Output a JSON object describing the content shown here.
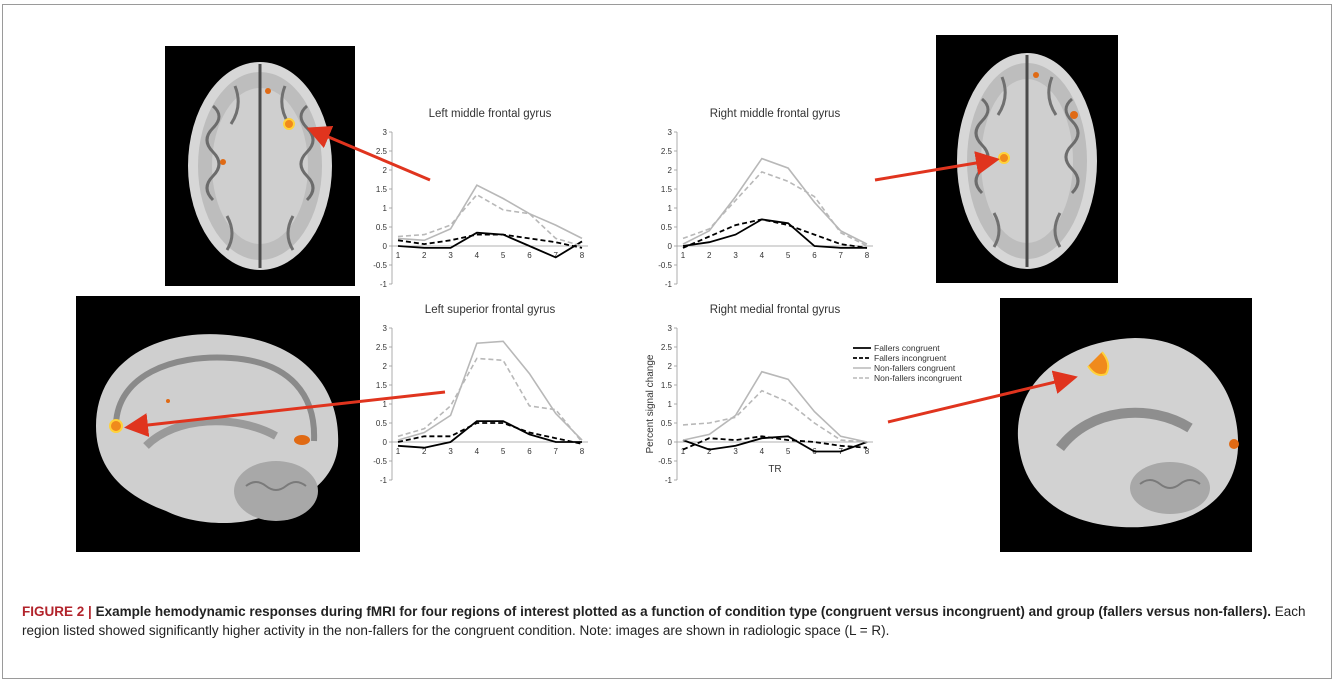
{
  "figure": {
    "label": "FIGURE 2 |",
    "title": "Example hemodynamic responses during fMRI for four regions of interest plotted as a function of condition type (congruent versus incongruent) and group (fallers versus non-fallers).",
    "body": "Each region listed showed significantly higher activity in the non-fallers for the congruent condition. Note: images are shown in radiologic space (L = R)."
  },
  "colors": {
    "arrow": "#e0341e",
    "fallers": "#000000",
    "nonfallers": "#b8b8b8",
    "activation": "#f08a1c"
  },
  "brains": [
    {
      "name": "axial-left",
      "label": "axial brain slice, left middle frontal activation"
    },
    {
      "name": "axial-right",
      "label": "axial brain slice, right middle frontal activation"
    },
    {
      "name": "sagittal-left",
      "label": "sagittal brain slice, left superior frontal activation"
    },
    {
      "name": "sagittal-right",
      "label": "sagittal brain slice, right medial frontal activation"
    }
  ],
  "chart_data": [
    {
      "type": "line",
      "title": "Left middle frontal gyrus",
      "x": [
        1,
        2,
        3,
        4,
        5,
        6,
        7,
        8
      ],
      "ylim": [
        -1,
        3
      ],
      "yticks": [
        "3",
        "2.5",
        "2",
        "1.5",
        "1",
        "0.5",
        "0",
        "-0.5",
        "-1"
      ],
      "xticks": [
        "1",
        "2",
        "3",
        "4",
        "5",
        "6",
        "7",
        "8"
      ],
      "ylabel": "",
      "xlabel": "",
      "series": [
        {
          "name": "Fallers congruent",
          "values": [
            0.0,
            -0.05,
            -0.05,
            0.35,
            0.3,
            0.0,
            -0.3,
            0.12
          ]
        },
        {
          "name": "Fallers incongruent",
          "values": [
            0.15,
            0.05,
            0.15,
            0.3,
            0.3,
            0.2,
            0.1,
            -0.05
          ]
        },
        {
          "name": "Non-fallers congruent",
          "values": [
            0.2,
            0.15,
            0.45,
            1.6,
            1.25,
            0.85,
            0.55,
            0.2
          ]
        },
        {
          "name": "Non-fallers incongruent",
          "values": [
            0.25,
            0.3,
            0.55,
            1.35,
            0.95,
            0.85,
            0.2,
            0.0
          ]
        }
      ],
      "legend": false
    },
    {
      "type": "line",
      "title": "Right middle frontal gyrus",
      "x": [
        1,
        2,
        3,
        4,
        5,
        6,
        7,
        8
      ],
      "ylim": [
        -1,
        3
      ],
      "yticks": [
        "3",
        "2.5",
        "2",
        "1.5",
        "1",
        "0.5",
        "0",
        "-0.5",
        "-1"
      ],
      "xticks": [
        "1",
        "2",
        "3",
        "4",
        "5",
        "6",
        "7",
        "8"
      ],
      "ylabel": "",
      "xlabel": "",
      "series": [
        {
          "name": "Fallers congruent",
          "values": [
            0.0,
            0.1,
            0.3,
            0.7,
            0.6,
            0.0,
            -0.05,
            -0.05
          ]
        },
        {
          "name": "Fallers incongruent",
          "values": [
            -0.05,
            0.25,
            0.55,
            0.7,
            0.55,
            0.3,
            0.05,
            -0.05
          ]
        },
        {
          "name": "Non-fallers congruent",
          "values": [
            0.05,
            0.4,
            1.3,
            2.3,
            2.05,
            1.15,
            0.4,
            0.05
          ]
        },
        {
          "name": "Non-fallers incongruent",
          "values": [
            0.2,
            0.45,
            1.2,
            1.95,
            1.7,
            1.3,
            0.35,
            0.0
          ]
        }
      ],
      "legend": false
    },
    {
      "type": "line",
      "title": "Left superior frontal gyrus",
      "x": [
        1,
        2,
        3,
        4,
        5,
        6,
        7,
        8
      ],
      "ylim": [
        -1,
        3
      ],
      "yticks": [
        "3",
        "2.5",
        "2",
        "1.5",
        "1",
        "0.5",
        "0",
        "-0.5",
        "-1"
      ],
      "xticks": [
        "1",
        "2",
        "3",
        "4",
        "5",
        "6",
        "7",
        "8"
      ],
      "ylabel": "",
      "xlabel": "",
      "series": [
        {
          "name": "Fallers congruent",
          "values": [
            -0.1,
            -0.15,
            0.0,
            0.55,
            0.55,
            0.2,
            0.0,
            0.0
          ]
        },
        {
          "name": "Fallers incongruent",
          "values": [
            0.0,
            0.15,
            0.15,
            0.5,
            0.5,
            0.25,
            0.1,
            -0.05
          ]
        },
        {
          "name": "Non-fallers congruent",
          "values": [
            0.05,
            0.25,
            0.7,
            2.6,
            2.65,
            1.8,
            0.75,
            0.05
          ]
        },
        {
          "name": "Non-fallers incongruent",
          "values": [
            0.15,
            0.35,
            0.95,
            2.2,
            2.15,
            0.95,
            0.85,
            0.0
          ]
        }
      ],
      "legend": false
    },
    {
      "type": "line",
      "title": "Right medial frontal gyrus",
      "x": [
        1,
        2,
        3,
        4,
        5,
        6,
        7,
        8
      ],
      "ylim": [
        -1,
        3
      ],
      "yticks": [
        "3",
        "2.5",
        "2",
        "1.5",
        "1",
        "0.5",
        "0",
        "-0.5",
        "-1"
      ],
      "xticks": [
        "1",
        "2",
        "3",
        "4",
        "5",
        "6",
        "7",
        "8"
      ],
      "ylabel": "Percent signal change",
      "xlabel": "TR",
      "series": [
        {
          "name": "Fallers congruent",
          "values": [
            0.05,
            -0.2,
            -0.1,
            0.1,
            0.15,
            -0.25,
            -0.25,
            0.0
          ]
        },
        {
          "name": "Fallers incongruent",
          "values": [
            -0.2,
            0.1,
            0.05,
            0.15,
            0.05,
            0.0,
            -0.1,
            -0.15
          ]
        },
        {
          "name": "Non-fallers congruent",
          "values": [
            0.05,
            0.2,
            0.7,
            1.85,
            1.65,
            0.8,
            0.15,
            0.0
          ]
        },
        {
          "name": "Non-fallers incongruent",
          "values": [
            0.45,
            0.5,
            0.65,
            1.35,
            1.05,
            0.5,
            0.05,
            0.0
          ]
        }
      ],
      "legend": true,
      "legend_entries": [
        "Fallers congruent",
        "Fallers incongruent",
        "Non-fallers congruent",
        "Non-fallers incongruent"
      ]
    }
  ]
}
